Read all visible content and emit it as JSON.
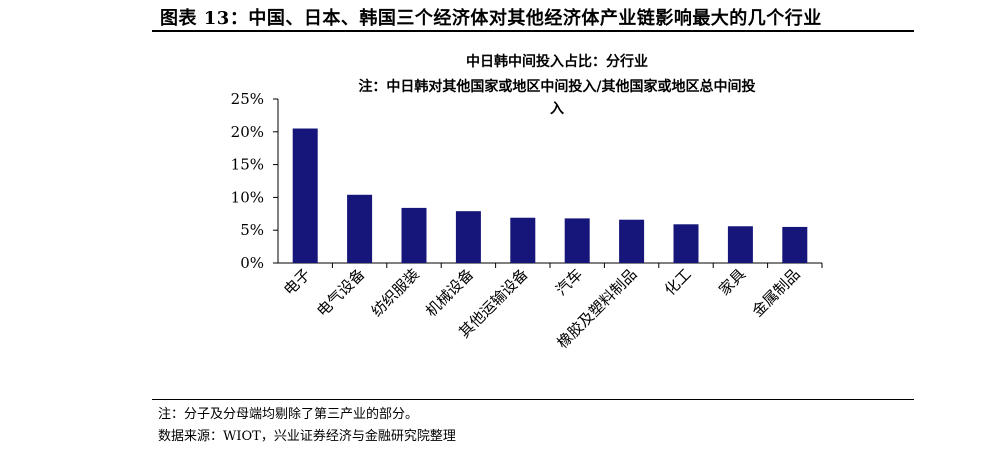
{
  "figure_title": "图表 13：中国、日本、韩国三个经济体对其他经济体产业链影响最大的几个行业",
  "note": "注：分子及分母端均剔除了第三产业的部分。",
  "source": "数据来源：WIOT，兴业证券经济与金融研究院整理",
  "chart_data": {
    "type": "bar",
    "title": "中日韩中间投入占比：分行业",
    "subtitle_lines": [
      "注：中日韩对其他国家或地区中间投入/其他国家或地区总中间投",
      "入"
    ],
    "categories": [
      "电子",
      "电气设备",
      "纺织服装",
      "机械设备",
      "其他运输设备",
      "汽车",
      "橡胶及塑料制品",
      "化工",
      "家具",
      "金属制品"
    ],
    "values": [
      20.5,
      10.4,
      8.4,
      7.9,
      6.9,
      6.8,
      6.6,
      5.9,
      5.6,
      5.5
    ],
    "unit": "%",
    "yticks": [
      "0%",
      "5%",
      "10%",
      "15%",
      "20%",
      "25%"
    ],
    "ylim": [
      0,
      25
    ],
    "bar_color": "#16167A",
    "grid": false,
    "legend": "none"
  }
}
